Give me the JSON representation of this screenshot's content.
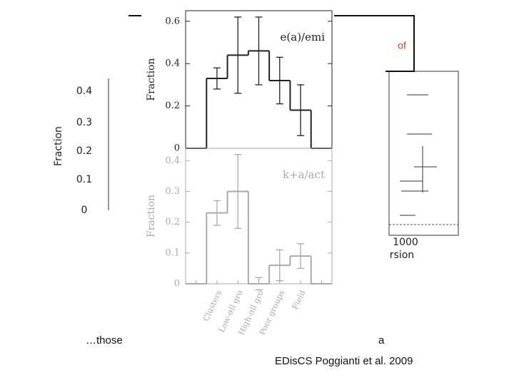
{
  "slide": {
    "caption_left": "…those",
    "caption_right": "a",
    "credit": "EDisCS Poggianti et al. 2009",
    "overlay_fragment": "of",
    "left_figure": {
      "ylabel": "Fraction",
      "yticks": [
        "0.4",
        "0.3",
        "0.2",
        "0.1",
        "0"
      ]
    },
    "right_figure": {
      "xtick": "1000",
      "xlabel_fragment": "rsion"
    }
  },
  "chart_data": [
    {
      "type": "step",
      "annotation": "e(a)/emi",
      "ylabel": "Fraction",
      "color": "#222222",
      "values": [
        0,
        0.33,
        0.44,
        0.46,
        0.32,
        0.18,
        0
      ],
      "errors": [
        null,
        0.05,
        0.18,
        0.16,
        0.11,
        0.12,
        null
      ],
      "ylim": [
        0,
        0.65
      ],
      "yticks": [
        0,
        0.2,
        0.4,
        0.6
      ]
    },
    {
      "type": "step",
      "annotation": "k+a/act",
      "ylabel": "Fraction",
      "color": "#aaaaaa",
      "categories": [
        null,
        "Clusters",
        "Low-σll gro",
        "High-σll gro",
        "Poor groups",
        "Field",
        null
      ],
      "values": [
        0,
        0.23,
        0.3,
        0,
        0.06,
        0.09,
        0
      ],
      "errors": [
        null,
        0.04,
        0.12,
        0.02,
        0.05,
        0.04,
        null
      ],
      "ylim": [
        0,
        0.44
      ],
      "yticks": [
        0,
        0.1,
        0.2,
        0.3,
        0.4
      ]
    }
  ]
}
